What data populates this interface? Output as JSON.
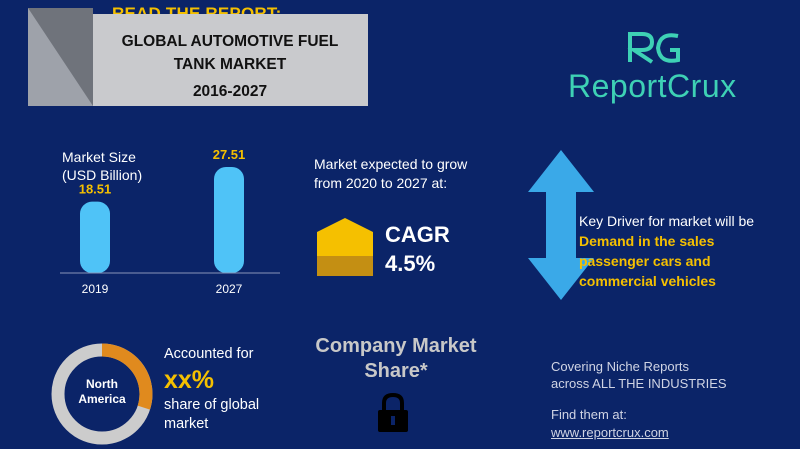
{
  "header": {
    "read_report": "READ THE REPORT:",
    "title_line1": "GLOBAL AUTOMOTIVE  FUEL",
    "title_line2": "TANK MARKET",
    "years": "2016-2027"
  },
  "brand": {
    "monogram": "RC",
    "name": "ReportCrux",
    "color": "#3ed1b5"
  },
  "market_size": {
    "label_line1": "Market Size",
    "label_line2": "(USD Billion)"
  },
  "chart_data": {
    "type": "bar",
    "categories": [
      "2019",
      "2027"
    ],
    "values": [
      18.51,
      27.51
    ],
    "value_labels": [
      "18.51",
      "27.51"
    ],
    "ylabel": "Market Size (USD Billion)",
    "bar_color": "#4fc3f7",
    "label_color": "#f5c000"
  },
  "growth": {
    "line1": "Market expected to grow",
    "line2": "from 2020 to 2027 at:",
    "cagr_label": "CAGR",
    "cagr_value": "4.5%"
  },
  "driver": {
    "label": "Key Driver for market will be",
    "value": "Demand in the sales passenger cars and commercial vehicles"
  },
  "region": {
    "name_line1": "North",
    "name_line2": "America",
    "accounted_for": "Accounted for",
    "share_value": "xx%",
    "share_line1": "share of global",
    "share_line2": "market"
  },
  "company": {
    "line1": "Company Market",
    "line2": "Share*"
  },
  "footer": {
    "covering_line1": "Covering Niche Reports",
    "covering_line2": "across ALL THE INDUSTRIES",
    "find_them": "Find them at:",
    "website": "www.reportcrux.com"
  },
  "colors": {
    "background": "#0b2468",
    "accent": "#f5c000",
    "bar": "#4fc3f7",
    "arrow": "#3aa9e8",
    "donut_main": "#cccccc",
    "donut_share": "#e08a1e"
  }
}
